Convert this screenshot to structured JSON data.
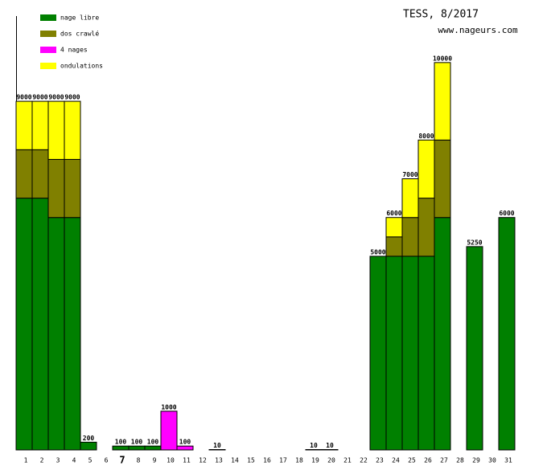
{
  "chart_data": {
    "type": "stacked_bar",
    "title": "TESS, 8/2017",
    "subtitle": "www.nageurs.com",
    "categories": [
      "1",
      "2",
      "3",
      "4",
      "5",
      "6",
      "7",
      "8",
      "9",
      "10",
      "11",
      "12",
      "13",
      "14",
      "15",
      "16",
      "17",
      "18",
      "19",
      "20",
      "21",
      "22",
      "23",
      "24",
      "25",
      "26",
      "27",
      "28",
      "29",
      "30",
      "31"
    ],
    "highlight_index": 6,
    "series": [
      {
        "name": "nage libre",
        "color": "#008000",
        "values": [
          6500,
          6500,
          6000,
          6000,
          200,
          null,
          100,
          100,
          100,
          null,
          null,
          null,
          10,
          null,
          null,
          null,
          null,
          null,
          10,
          10,
          null,
          null,
          5000,
          5000,
          5000,
          5000,
          6000,
          null,
          5250,
          null,
          6000
        ]
      },
      {
        "name": "dos crawlé",
        "color": "#808000",
        "values": [
          1250,
          1250,
          1500,
          1500,
          null,
          null,
          null,
          null,
          null,
          null,
          null,
          null,
          null,
          null,
          null,
          null,
          null,
          null,
          null,
          null,
          null,
          null,
          null,
          500,
          1000,
          1500,
          2000,
          null,
          null,
          null,
          null
        ]
      },
      {
        "name": "4 nages",
        "color": "#ff00ff",
        "values": [
          null,
          null,
          null,
          null,
          null,
          null,
          null,
          null,
          null,
          1000,
          100,
          null,
          null,
          null,
          null,
          null,
          null,
          null,
          null,
          null,
          null,
          null,
          null,
          null,
          null,
          null,
          null,
          null,
          null,
          null,
          null
        ]
      },
      {
        "name": "ondulations",
        "color": "#ffff00",
        "values": [
          1250,
          1250,
          1500,
          1500,
          null,
          null,
          null,
          null,
          null,
          null,
          null,
          null,
          null,
          null,
          null,
          null,
          null,
          null,
          null,
          null,
          null,
          null,
          null,
          500,
          1000,
          1500,
          2000,
          null,
          null,
          null,
          null
        ]
      }
    ],
    "totals": [
      9000,
      9000,
      9000,
      9000,
      200,
      null,
      100,
      100,
      100,
      1000,
      100,
      null,
      10,
      null,
      null,
      null,
      null,
      null,
      10,
      10,
      null,
      null,
      5000,
      6000,
      7000,
      8000,
      10000,
      null,
      5250,
      null,
      6000
    ],
    "ylim": [
      0,
      11200
    ]
  }
}
